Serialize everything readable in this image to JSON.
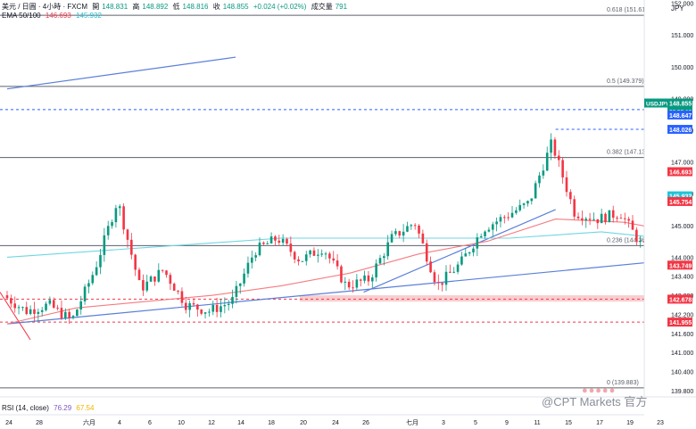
{
  "header": {
    "title": "美元 / 日圓 · 4小時 · FXCM",
    "open_label": "開",
    "open": "148.831",
    "high_label": "高",
    "high": "148.892",
    "low_label": "低",
    "low": "148.816",
    "close_label": "收",
    "close": "148.855",
    "change": "+0.024 (+0.02%)",
    "volume_label": "成交量",
    "volume": "791",
    "ema_label": "EMA 50/100",
    "ema50": "146.693",
    "ema100": "145.932",
    "rsi_label": "RSI (14, close)",
    "rsi1": "76.29",
    "rsi2": "67.54"
  },
  "currency": "JPY",
  "watermark": "@CPT Markets 官方",
  "price_labels": [
    {
      "text": "USDJPY",
      "value": 148.855,
      "color": "#089981",
      "time": "02:59:10"
    },
    {
      "text": "148.647",
      "value": 148.647,
      "color": "#2962ff"
    },
    {
      "text": "148.026",
      "value": 148.026,
      "color": "#2962ff"
    },
    {
      "text": "146.693",
      "value": 146.693,
      "color": "#f23645"
    },
    {
      "text": "145.932",
      "value": 145.932,
      "color": "#22c3d6"
    },
    {
      "text": "145.754",
      "value": 145.754,
      "color": "#f23645"
    },
    {
      "text": "143.749",
      "value": 143.749,
      "color": "#f23645"
    },
    {
      "text": "142.678",
      "value": 142.678,
      "color": "#f23645"
    },
    {
      "text": "141.955",
      "value": 141.955,
      "color": "#f23645"
    }
  ],
  "fib_levels": [
    {
      "label": "0.618 (151.619)",
      "value": 151.619
    },
    {
      "label": "0.5 (149.379)",
      "value": 149.379
    },
    {
      "label": "0.382 (147.138)",
      "value": 147.138
    },
    {
      "label": "0.236 (144.365)",
      "value": 144.365
    },
    {
      "label": "0 (139.883)",
      "value": 139.883
    }
  ],
  "chart_data": {
    "type": "candlestick",
    "symbol": "USDJPY",
    "ylim": [
      139.6,
      152.1
    ],
    "y_ticks": [
      {
        "label": "152.000",
        "value": 152.0
      },
      {
        "label": "151.000",
        "value": 151.0
      },
      {
        "label": "150.000",
        "value": 150.0
      },
      {
        "label": "149.000",
        "value": 149.0
      },
      {
        "label": "148.000",
        "value": 148.0
      },
      {
        "label": "147.000",
        "value": 147.0
      },
      {
        "label": "146.000",
        "value": 146.0
      },
      {
        "label": "145.000",
        "value": 145.0
      },
      {
        "label": "144.000",
        "value": 144.0
      },
      {
        "label": "143.400",
        "value": 143.4
      },
      {
        "label": "142.800",
        "value": 142.8
      },
      {
        "label": "142.200",
        "value": 142.2
      },
      {
        "label": "141.600",
        "value": 141.6
      },
      {
        "label": "141.000",
        "value": 141.0
      },
      {
        "label": "140.400",
        "value": 140.4
      },
      {
        "label": "139.800",
        "value": 139.8
      }
    ],
    "x_ticks": [
      "24",
      "28",
      "六月",
      "4",
      "6",
      "10",
      "12",
      "14",
      "18",
      "20",
      "24",
      "26",
      "七月",
      "3",
      "5",
      "9",
      "11",
      "15",
      "17",
      "19",
      "23"
    ],
    "price_path": [
      [
        0,
        142.8
      ],
      [
        0.5,
        142.3
      ],
      [
        1,
        142.5
      ],
      [
        1.5,
        142.0
      ],
      [
        2,
        143.6
      ],
      [
        2.5,
        145.8
      ],
      [
        3,
        143.0
      ],
      [
        3.5,
        143.6
      ],
      [
        4,
        142.5
      ],
      [
        4.5,
        142.3
      ],
      [
        5,
        142.6
      ],
      [
        5.5,
        144.2
      ],
      [
        6,
        144.6
      ],
      [
        6.5,
        143.9
      ],
      [
        7,
        144.3
      ],
      [
        7.5,
        143.1
      ],
      [
        8,
        143.3
      ],
      [
        8.5,
        144.6
      ],
      [
        9,
        145.1
      ],
      [
        9.5,
        143.1
      ],
      [
        10,
        143.8
      ],
      [
        10.5,
        144.9
      ],
      [
        11,
        145.3
      ],
      [
        11.5,
        145.7
      ],
      [
        12,
        147.6
      ],
      [
        12.5,
        145.4
      ],
      [
        13,
        145.2
      ],
      [
        13.5,
        145.4
      ],
      [
        14,
        144.3
      ],
      [
        14.5,
        144.2
      ],
      [
        15,
        144.5
      ],
      [
        15.5,
        142.8
      ],
      [
        16,
        143.4
      ],
      [
        16.5,
        144.6
      ],
      [
        17,
        145.1
      ],
      [
        17.5,
        145.7
      ],
      [
        18,
        146.5
      ],
      [
        18.5,
        146.3
      ],
      [
        19,
        146.8
      ],
      [
        19.5,
        146.4
      ],
      [
        20,
        147.0
      ],
      [
        20.5,
        148.7
      ]
    ],
    "ema50_path": [
      [
        0,
        141.9
      ],
      [
        1.5,
        142.4
      ],
      [
        3,
        142.6
      ],
      [
        4.5,
        142.8
      ],
      [
        6,
        143.1
      ],
      [
        7.5,
        143.5
      ],
      [
        9,
        144.1
      ],
      [
        10.5,
        144.5
      ],
      [
        12,
        145.2
      ],
      [
        13.5,
        145.1
      ],
      [
        15,
        144.7
      ],
      [
        16.5,
        144.5
      ],
      [
        18,
        145.0
      ],
      [
        19.5,
        145.9
      ],
      [
        20.5,
        146.6
      ]
    ],
    "ema100_path": [
      [
        0,
        144.0
      ],
      [
        3,
        144.3
      ],
      [
        6,
        144.6
      ],
      [
        9,
        144.6
      ],
      [
        11,
        144.6
      ],
      [
        13,
        144.8
      ],
      [
        15,
        144.5
      ],
      [
        16.5,
        144.2
      ],
      [
        18,
        144.6
      ],
      [
        19.5,
        145.3
      ],
      [
        20.5,
        145.9
      ]
    ],
    "trendlines": [
      {
        "from": [
          0,
          149.3
        ],
        "to": [
          5,
          150.3
        ]
      },
      {
        "from": [
          0,
          141.9
        ],
        "to": [
          14.5,
          143.9
        ]
      },
      {
        "from": [
          7.8,
          142.9
        ],
        "to": [
          12,
          145.5
        ]
      },
      {
        "from": [
          15.5,
          142.7
        ],
        "to": [
          20.5,
          147.0
        ]
      }
    ],
    "support_zone": [
      142.6,
      142.8
    ]
  }
}
